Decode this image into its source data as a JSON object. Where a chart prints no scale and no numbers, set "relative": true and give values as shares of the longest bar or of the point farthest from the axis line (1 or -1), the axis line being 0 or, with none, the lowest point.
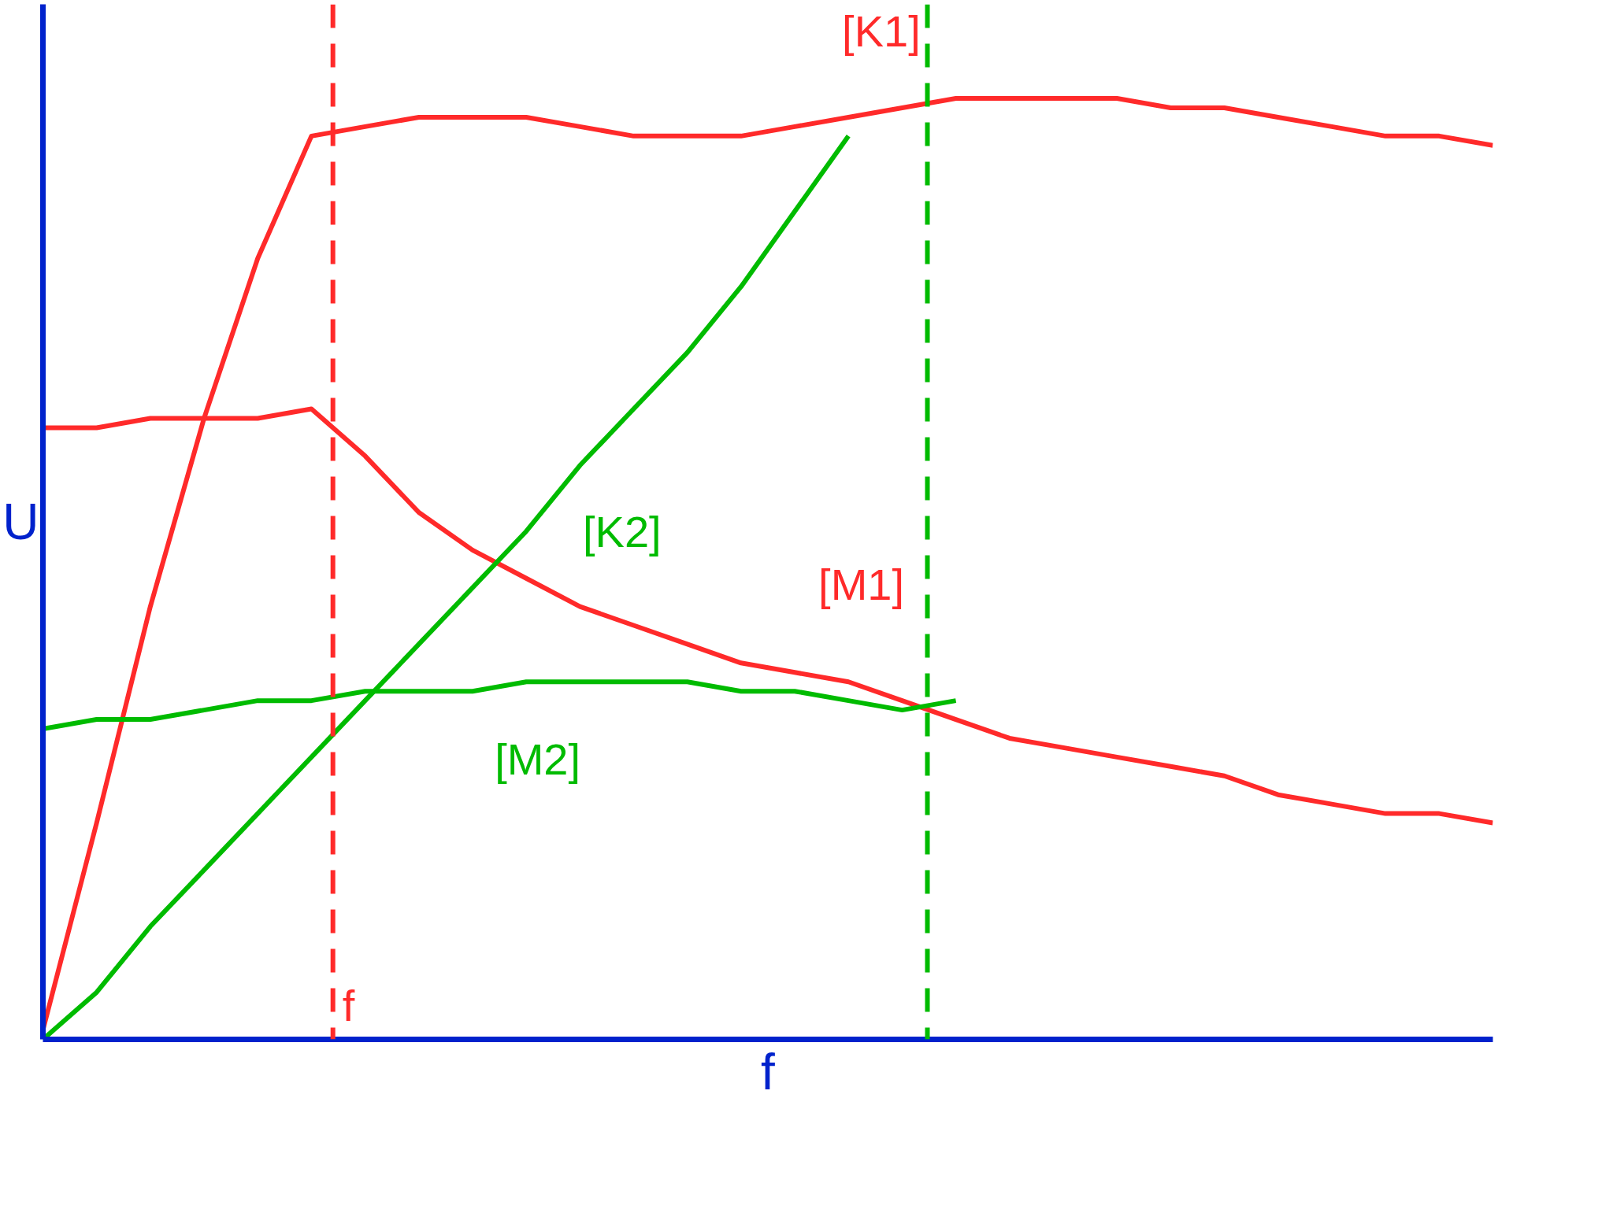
{
  "chart_data": {
    "type": "line",
    "relative": true,
    "xlabel": "f",
    "ylabel": "U",
    "marker": "none",
    "categories": [
      null,
      null,
      null,
      null,
      null,
      null,
      null,
      null,
      null,
      null,
      null,
      null,
      null,
      null,
      null,
      null,
      null,
      null,
      null,
      null,
      null,
      null,
      null,
      null,
      null,
      null,
      null,
      null
    ],
    "series": [
      {
        "name": "[K1]",
        "color": "#ff2a2a",
        "values": [
          0.01,
          0.23,
          0.46,
          0.66,
          0.83,
          0.96,
          0.97,
          0.98,
          0.98,
          0.98,
          0.97,
          0.96,
          0.96,
          0.96,
          0.97,
          0.98,
          0.99,
          1.0,
          1.0,
          1.0,
          1.0,
          0.99,
          0.99,
          0.98,
          0.97,
          0.96,
          0.96,
          0.95
        ]
      },
      {
        "name": "[M1]",
        "color": "#ff2a2a",
        "values": [
          0.65,
          0.65,
          0.66,
          0.66,
          0.66,
          0.67,
          0.62,
          0.56,
          0.52,
          0.49,
          0.46,
          0.44,
          0.42,
          0.4,
          0.39,
          0.38,
          0.36,
          0.34,
          0.32,
          0.31,
          0.3,
          0.29,
          0.28,
          0.26,
          0.25,
          0.24,
          0.24,
          0.23
        ]
      },
      {
        "name": "[K2]",
        "color": "#00bb00",
        "values": [
          0.0,
          0.05,
          0.12,
          0.18,
          0.24,
          0.3,
          0.36,
          0.42,
          0.48,
          0.54,
          0.61,
          0.67,
          0.73,
          0.8,
          0.88,
          0.96,
          null,
          null,
          null,
          null,
          null,
          null,
          null,
          null,
          null,
          null,
          null,
          null
        ]
      },
      {
        "name": "[M2]",
        "color": "#00bb00",
        "values": [
          0.33,
          0.34,
          0.34,
          0.35,
          0.36,
          0.36,
          0.37,
          0.37,
          0.37,
          0.38,
          0.38,
          0.38,
          0.38,
          0.37,
          0.37,
          0.36,
          0.35,
          0.36,
          null,
          null,
          null,
          null,
          null,
          null,
          null,
          null,
          null,
          null
        ]
      }
    ],
    "annotations": [
      "f"
    ]
  }
}
